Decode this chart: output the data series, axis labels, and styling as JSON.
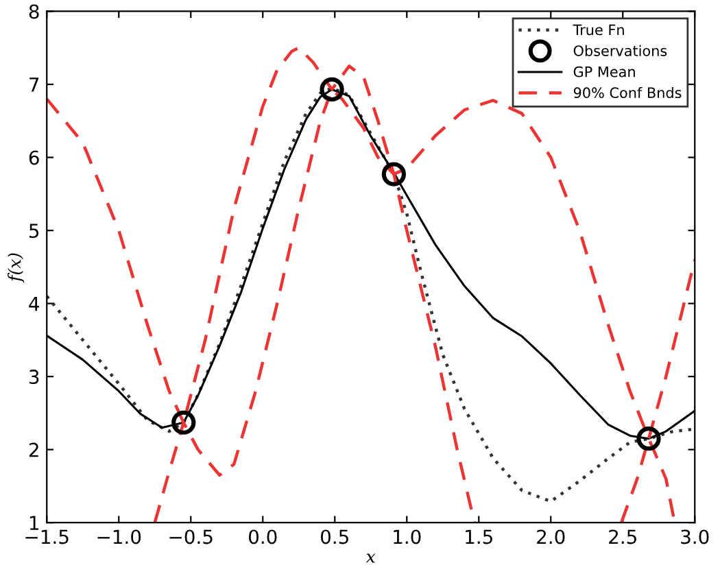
{
  "chart_data": {
    "type": "line",
    "xlabel": "x",
    "ylabel": "f(x)",
    "xlim": [
      -1.5,
      3.0
    ],
    "ylim": [
      1,
      8
    ],
    "xticks": [
      {
        "value": -1.5,
        "label": "−1.5"
      },
      {
        "value": -1.0,
        "label": "−1.0"
      },
      {
        "value": -0.5,
        "label": "−0.5"
      },
      {
        "value": 0,
        "label": "0.0"
      },
      0.5,
      {
        "value": 1,
        "label": "1.0"
      },
      1.5,
      {
        "value": 2,
        "label": "2.0"
      },
      2.5,
      {
        "value": 3,
        "label": "3.0"
      }
    ],
    "yticks": [
      1,
      2,
      3,
      4,
      5,
      6,
      7,
      8
    ],
    "grid": false,
    "legend": "top right",
    "series": [
      {
        "name": "True Fn",
        "line_style": "dotted",
        "color": "#333333",
        "x": [
          -1.5,
          -1.25,
          -1.0,
          -0.8,
          -0.65,
          -0.55,
          -0.45,
          -0.3,
          -0.15,
          0.0,
          0.15,
          0.3,
          0.4,
          0.48,
          0.6,
          0.7,
          0.8,
          0.91,
          1.0,
          1.1,
          1.25,
          1.4,
          1.6,
          1.8,
          2.0,
          2.2,
          2.4,
          2.55,
          2.68,
          2.85,
          3.0
        ],
        "values": [
          4.1,
          3.5,
          2.9,
          2.4,
          2.25,
          2.37,
          2.75,
          3.45,
          4.25,
          5.1,
          5.95,
          6.6,
          6.88,
          6.95,
          6.85,
          6.5,
          6.15,
          5.77,
          5.23,
          4.42,
          3.3,
          2.56,
          1.88,
          1.44,
          1.29,
          1.57,
          1.88,
          2.1,
          2.15,
          2.25,
          2.28
        ]
      },
      {
        "name": "Observations",
        "type": "scatter",
        "marker": "circle",
        "color": "#000000",
        "x": [
          -0.55,
          0.48,
          0.91,
          2.68
        ],
        "values": [
          2.37,
          6.93,
          5.77,
          2.15
        ]
      },
      {
        "name": "GP Mean",
        "line_style": "solid",
        "color": "#000000",
        "x": [
          -1.5,
          -1.25,
          -1.0,
          -0.85,
          -0.7,
          -0.55,
          -0.45,
          -0.3,
          -0.15,
          0.0,
          0.15,
          0.3,
          0.4,
          0.48,
          0.6,
          0.75,
          0.91,
          1.0,
          1.2,
          1.4,
          1.6,
          1.8,
          2.0,
          2.2,
          2.4,
          2.55,
          2.68,
          2.8,
          3.0
        ],
        "values": [
          3.56,
          3.23,
          2.8,
          2.49,
          2.3,
          2.37,
          2.74,
          3.42,
          4.16,
          5.03,
          5.84,
          6.52,
          6.83,
          6.93,
          6.84,
          6.29,
          5.79,
          5.48,
          4.8,
          4.24,
          3.8,
          3.55,
          3.18,
          2.75,
          2.34,
          2.19,
          2.15,
          2.25,
          2.53
        ]
      },
      {
        "name": "90% Conf Bnds",
        "line_style": "dashed",
        "color": "#ee3333",
        "x": [
          -1.5,
          -1.25,
          -1.0,
          -0.8,
          -0.65,
          -0.55,
          -0.4,
          -0.2,
          0.0,
          0.1,
          0.2,
          0.25,
          0.35,
          0.48,
          0.6,
          0.7,
          0.8,
          0.91,
          1.0,
          1.2,
          1.4,
          1.6,
          1.8,
          2.0,
          2.2,
          2.4,
          2.55,
          2.68,
          2.8,
          2.9,
          3.0
        ],
        "values": [
          6.8,
          6.2,
          5.0,
          3.7,
          2.8,
          2.37,
          3.5,
          5.3,
          6.7,
          7.2,
          7.45,
          7.5,
          7.3,
          6.93,
          7.25,
          7.1,
          6.5,
          5.77,
          5.85,
          6.3,
          6.65,
          6.78,
          6.6,
          6.0,
          5.0,
          3.7,
          2.8,
          2.15,
          3.0,
          3.8,
          4.6
        ]
      },
      {
        "line_style": "dashed",
        "color": "#ee3333",
        "x": [
          -0.75,
          -0.65,
          -0.55,
          -0.45,
          -0.3,
          -0.2,
          -0.05,
          0.1,
          0.25,
          0.4,
          0.48,
          0.55,
          0.7,
          0.8,
          0.91,
          1.0,
          1.2,
          1.35,
          1.47,
          2.0,
          2.49,
          2.6,
          2.68,
          2.8,
          2.86
        ],
        "values": [
          1.0,
          1.7,
          2.37,
          2.0,
          1.65,
          1.8,
          2.8,
          4.0,
          5.3,
          6.5,
          6.93,
          6.8,
          6.4,
          6.0,
          5.77,
          5.0,
          3.4,
          2.0,
          1.0,
          null,
          1.0,
          1.6,
          2.15,
          1.6,
          1.0
        ]
      }
    ]
  }
}
